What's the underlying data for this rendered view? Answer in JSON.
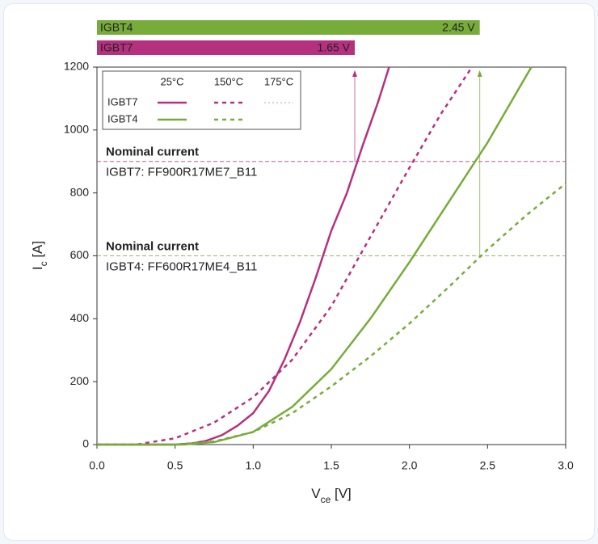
{
  "chart_data": {
    "type": "line",
    "xlabel": {
      "main": "V",
      "sub": "ce",
      "unit": " [V]"
    },
    "ylabel": {
      "main": "I",
      "sub": "c",
      "unit": " [A]"
    },
    "xlim": [
      0,
      3
    ],
    "ylim": [
      0,
      1200
    ],
    "xticks": [
      {
        "value": 0,
        "label": "0.0"
      },
      {
        "value": 0.5,
        "label": "0.5"
      },
      {
        "value": 1,
        "label": "1.0"
      },
      {
        "value": 1.5,
        "label": "1.5"
      },
      {
        "value": 2,
        "label": "2.0"
      },
      {
        "value": 2.5,
        "label": "2.5"
      },
      {
        "value": 3,
        "label": "3.0"
      }
    ],
    "yticks": [
      0,
      200,
      400,
      600,
      800,
      1000,
      1200
    ],
    "legend_columns": [
      "25°C",
      "150°C",
      "175°C"
    ],
    "series": [
      {
        "name": "IGBT7",
        "temperature": "25°C",
        "color": "#b5317f",
        "style": "solid",
        "x": [
          0,
          0.5,
          0.6,
          0.7,
          0.8,
          0.9,
          1.0,
          1.1,
          1.2,
          1.3,
          1.4,
          1.5,
          1.6,
          1.7,
          1.8,
          1.87
        ],
        "values": [
          0,
          0,
          3,
          12,
          30,
          60,
          100,
          170,
          270,
          390,
          530,
          680,
          800,
          950,
          1090,
          1200
        ]
      },
      {
        "name": "IGBT7",
        "temperature": "150°C",
        "color": "#b5317f",
        "style": "dotted",
        "x": [
          0,
          0.25,
          0.5,
          0.75,
          1.0,
          1.25,
          1.5,
          1.75,
          2.0,
          2.2,
          2.4
        ],
        "values": [
          0,
          0,
          20,
          70,
          150,
          270,
          440,
          660,
          880,
          1050,
          1200
        ]
      },
      {
        "name": "IGBT4",
        "temperature": "25°C",
        "color": "#77ab3a",
        "style": "solid",
        "x": [
          0,
          0.55,
          0.75,
          1.0,
          1.25,
          1.5,
          1.75,
          2.0,
          2.25,
          2.5,
          2.78
        ],
        "values": [
          0,
          0,
          8,
          40,
          120,
          240,
          400,
          580,
          770,
          960,
          1200
        ]
      },
      {
        "name": "IGBT4",
        "temperature": "150°C",
        "color": "#77ab3a",
        "style": "dotted",
        "x": [
          0,
          0.5,
          0.75,
          1.0,
          1.25,
          1.5,
          1.75,
          2.0,
          2.25,
          2.5,
          2.75,
          3.0
        ],
        "values": [
          0,
          0,
          10,
          40,
          100,
          185,
          280,
          385,
          500,
          620,
          730,
          830
        ]
      }
    ],
    "nominal": [
      {
        "title": "Nominal current",
        "label": "IGBT7: FF900R17ME7_B11",
        "value": 900,
        "color": "#b5317f"
      },
      {
        "title": "Nominal current",
        "label": "IGBT4: FF600R17ME4_B11",
        "value": 600,
        "color": "#77ab3a"
      }
    ],
    "bars": [
      {
        "name": "IGBT4",
        "value": 2.45,
        "value_label": "2.45 V",
        "color": "#77ab3a"
      },
      {
        "name": "IGBT7",
        "value": 1.65,
        "value_label": "1.65 V",
        "color": "#b5317f"
      }
    ]
  }
}
